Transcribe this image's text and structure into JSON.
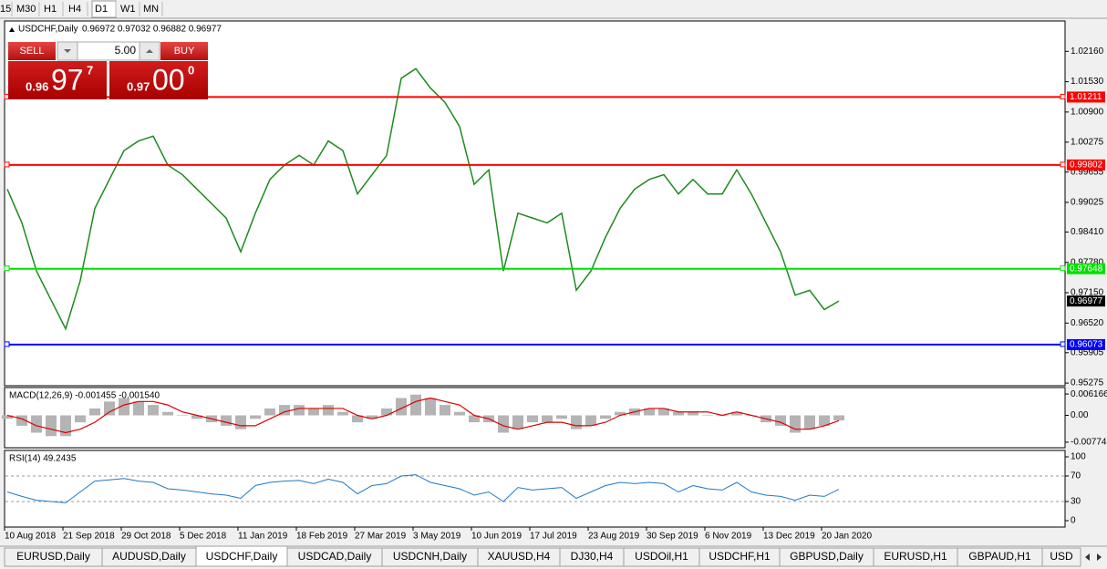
{
  "toolbar": {
    "timeframes": [
      "15",
      "M30",
      "H1",
      "H4",
      "D1",
      "W1",
      "MN"
    ]
  },
  "trade_panel": {
    "sell": "SELL",
    "lot": "5.00",
    "buy": "BUY",
    "bid": {
      "prefix": "0.96",
      "big": "97",
      "small": "7"
    },
    "ask": {
      "prefix": "0.97",
      "big": "00",
      "small": "0"
    }
  },
  "chart_data": [
    {
      "type": "line",
      "title": "USDCHF,Daily",
      "subtitle": "0.96972 0.97032 0.96882 0.96977",
      "categories": [
        "10 Aug 2018",
        null,
        null,
        null,
        "21 Sep 2018",
        null,
        null,
        null,
        "29 Oct 2018",
        null,
        null,
        null,
        "5 Dec 2018",
        null,
        null,
        null,
        "11 Jan 2019",
        null,
        null,
        null,
        "18 Feb 2019",
        null,
        null,
        null,
        "27 Mar 2019",
        null,
        null,
        null,
        "3 May 2019",
        null,
        null,
        null,
        "10 Jun 2019",
        null,
        null,
        null,
        "17 Jul 2019",
        null,
        null,
        null,
        "23 Aug 2019",
        null,
        null,
        null,
        "30 Sep 2019",
        null,
        null,
        null,
        "6 Nov 2019",
        null,
        null,
        null,
        "13 Dec 2019",
        null,
        null,
        null,
        "20 Jan 2020",
        null
      ],
      "series": [
        {
          "color": "#1f8a1f",
          "values": [
            0.993,
            0.986,
            0.976,
            0.97,
            0.964,
            0.974,
            0.989,
            0.995,
            1.001,
            1.003,
            1.004,
            0.998,
            0.996,
            0.993,
            0.99,
            0.987,
            0.98,
            0.988,
            0.995,
            0.998,
            1.0,
            0.998,
            1.003,
            1.001,
            0.992,
            0.996,
            1.0,
            1.016,
            1.018,
            1.014,
            1.011,
            1.006,
            0.994,
            0.997,
            0.976,
            0.988,
            0.987,
            0.986,
            0.988,
            0.972,
            0.976,
            0.983,
            0.989,
            0.993,
            0.995,
            0.996,
            0.992,
            0.995,
            0.992,
            0.992,
            0.997,
            0.992,
            0.986,
            0.98,
            0.971,
            0.972,
            0.968,
            0.96977
          ]
        }
      ],
      "ylim": [
        0.9522,
        1.0279
      ],
      "yticks": [
        {
          "value": 1.0216,
          "label": "1.02160"
        },
        {
          "value": 1.0153,
          "label": "1.01530"
        },
        {
          "value": 1.009,
          "label": "1.00900"
        },
        1.00275,
        0.99655,
        0.99025,
        {
          "value": 0.9841,
          "label": "0.98410"
        },
        {
          "value": 0.9778,
          "label": "0.97780"
        },
        {
          "value": 0.9715,
          "label": "0.97150"
        },
        {
          "value": 0.9652,
          "label": "0.96520"
        },
        0.95905,
        0.95275
      ],
      "levels": [
        {
          "value": 1.01211,
          "color": "#ff0000"
        },
        {
          "value": 0.99802,
          "color": "#ff0000"
        },
        {
          "value": 0.97648,
          "color": "#00e000"
        },
        {
          "value": 0.96073,
          "color": "#0000ff"
        }
      ],
      "current_price": 0.96977
    },
    {
      "type": "bar",
      "title": "MACD(12,26,9) -0.001455 -0.001540",
      "color": "#b4b4b4",
      "values": [
        -0.001,
        -0.003,
        -0.005,
        -0.006,
        -0.006,
        -0.002,
        0.002,
        0.004,
        0.005,
        0.004,
        0.003,
        0.001,
        0.0,
        -0.001,
        -0.002,
        -0.003,
        -0.004,
        -0.001,
        0.002,
        0.003,
        0.003,
        0.002,
        0.003,
        0.001,
        -0.002,
        -0.001,
        0.002,
        0.005,
        0.006,
        0.005,
        0.003,
        0.001,
        -0.002,
        -0.002,
        -0.005,
        -0.004,
        -0.002,
        -0.002,
        -0.001,
        -0.004,
        -0.003,
        -0.001,
        0.001,
        0.002,
        0.002,
        0.002,
        0.001,
        0.001,
        0.0,
        0.0,
        0.001,
        0.0,
        -0.002,
        -0.003,
        -0.005,
        -0.004,
        -0.003,
        -0.001455
      ],
      "signal": {
        "color": "#dd0000",
        "values": [
          0.0,
          -0.001,
          -0.003,
          -0.004,
          -0.005,
          -0.004,
          -0.002,
          0.001,
          0.003,
          0.004,
          0.004,
          0.003,
          0.001,
          0.0,
          -0.001,
          -0.002,
          -0.003,
          -0.003,
          -0.001,
          0.001,
          0.002,
          0.002,
          0.002,
          0.002,
          0.0,
          -0.001,
          0.0,
          0.002,
          0.004,
          0.005,
          0.004,
          0.003,
          0.0,
          -0.001,
          -0.003,
          -0.004,
          -0.003,
          -0.002,
          -0.002,
          -0.003,
          -0.003,
          -0.002,
          0.0,
          0.001,
          0.002,
          0.002,
          0.001,
          0.001,
          0.001,
          0.0,
          0.001,
          0.0,
          -0.001,
          -0.002,
          -0.004,
          -0.004,
          -0.003,
          -0.00154
        ]
      },
      "ylim": [
        -0.00935,
        0.00804
      ],
      "yticks": [
        0.006166,
        {
          "value": 0,
          "label": "0.00"
        },
        -0.007745
      ]
    },
    {
      "type": "line",
      "title": "RSI(14) 49.2435",
      "color": "#1e78c8",
      "values": [
        45,
        38,
        32,
        30,
        28,
        45,
        62,
        64,
        66,
        62,
        60,
        50,
        48,
        45,
        42,
        40,
        35,
        55,
        60,
        62,
        63,
        58,
        65,
        60,
        42,
        55,
        58,
        70,
        72,
        60,
        55,
        50,
        40,
        45,
        30,
        52,
        48,
        50,
        52,
        35,
        45,
        55,
        60,
        58,
        60,
        58,
        45,
        55,
        50,
        48,
        60,
        45,
        40,
        38,
        32,
        40,
        38,
        49.2435
      ],
      "ylim": [
        -10,
        110
      ],
      "yticks": [
        100,
        70,
        30,
        0
      ],
      "levels": [
        70,
        30
      ]
    }
  ],
  "tabs": [
    "EURUSD,Daily",
    "AUDUSD,Daily",
    "USDCHF,Daily",
    "USDCAD,Daily",
    "USDCNH,Daily",
    "XAUUSD,H4",
    "DJ30,H4",
    "USDOil,H1",
    "USDCHF,H1",
    "GBPUSD,Daily",
    "EURUSD,H1",
    "GBPAUD,H1",
    "USD"
  ],
  "active_tab": 2
}
